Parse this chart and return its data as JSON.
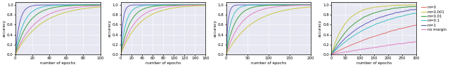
{
  "subplots": [
    {
      "xmax": 100,
      "xticks": [
        0,
        20,
        40,
        60,
        80,
        100
      ]
    },
    {
      "xmax": 160,
      "xticks": [
        0,
        20,
        40,
        60,
        80,
        100,
        120,
        140,
        160
      ]
    },
    {
      "xmax": 200,
      "xticks": [
        0,
        50,
        100,
        150,
        200
      ]
    },
    {
      "xmax": 300,
      "xticks": [
        0,
        50,
        100,
        150,
        200,
        250,
        300
      ]
    }
  ],
  "colors": [
    "#e07070",
    "#c8c840",
    "#40a040",
    "#40c0c0",
    "#6060c0",
    "#e080c0"
  ],
  "legend_labels": [
    "m=0",
    "m=0.001",
    "m=0.01",
    "m=0.1",
    "m=1",
    "no margin"
  ],
  "ylabel": "accuracy",
  "xlabel": "number of epochs",
  "ylim": [
    0.0,
    1.05
  ],
  "yticks": [
    0.0,
    0.2,
    0.4,
    0.6,
    0.8,
    1.0
  ],
  "background_color": "#e8e8f2",
  "fig_background": "#ffffff",
  "curve_params": [
    {
      "n": 5,
      "colors_idx": [
        4,
        3,
        2,
        5,
        1
      ],
      "rates": [
        0.2,
        0.1,
        0.065,
        0.042,
        0.032
      ]
    },
    {
      "n": 5,
      "colors_idx": [
        4,
        3,
        2,
        5,
        1
      ],
      "rates": [
        0.25,
        0.1,
        0.058,
        0.038,
        0.028
      ]
    },
    {
      "n": 5,
      "colors_idx": [
        4,
        3,
        2,
        5,
        1
      ],
      "rates": [
        0.22,
        0.09,
        0.048,
        0.028,
        0.016
      ]
    },
    {
      "n": 6,
      "colors_idx": [
        1,
        2,
        4,
        3,
        0,
        5
      ],
      "rates": [
        0.02,
        0.012,
        0.008,
        0.006,
        0.003,
        0.001
      ],
      "use_noisy": true
    }
  ]
}
